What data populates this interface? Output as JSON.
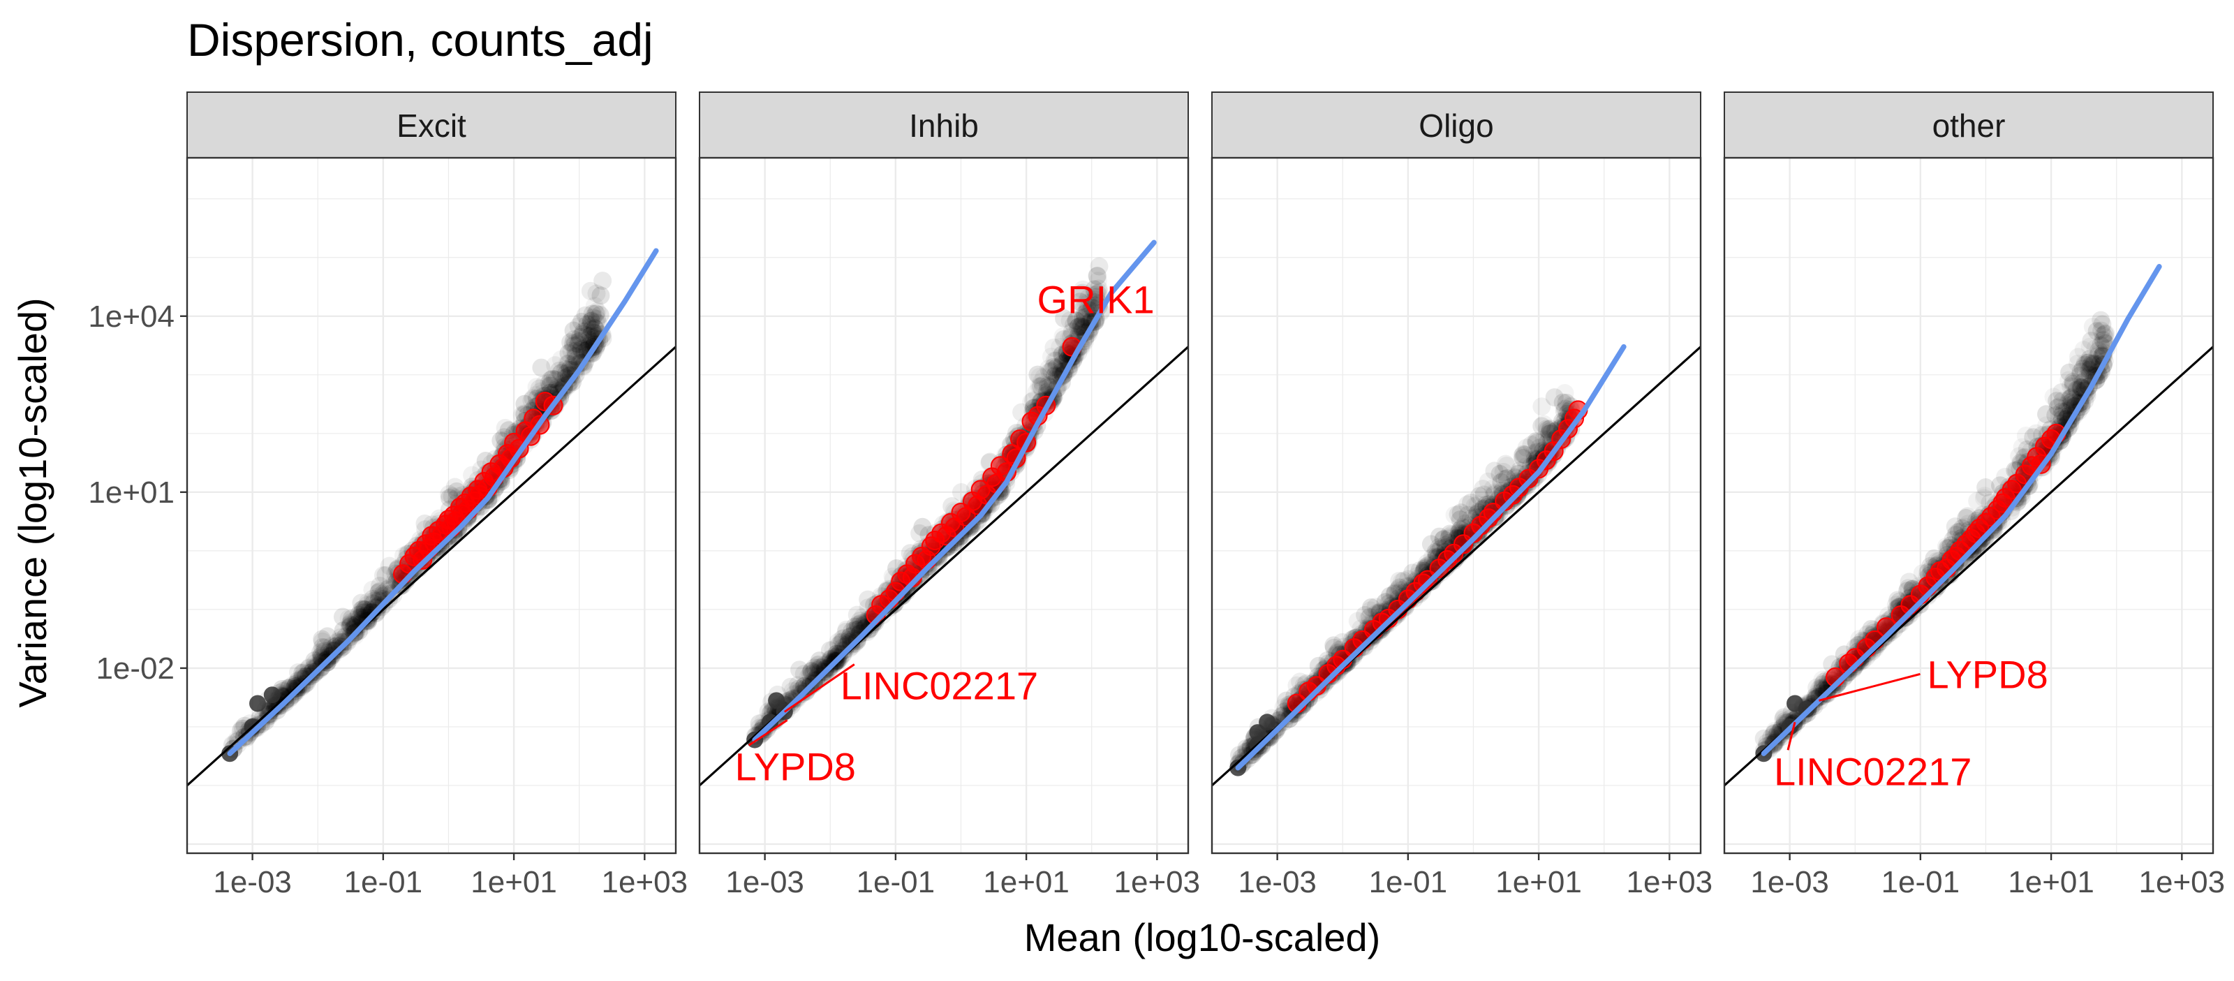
{
  "chart_data": {
    "type": "scatter",
    "title": "Dispersion,  counts_adj",
    "xlabel": "Mean (log10-scaled)",
    "ylabel": "Variance (log10-scaled)",
    "x_scale": "log10",
    "y_scale": "log10",
    "xlim": [
      0.0001,
      3000
    ],
    "ylim": [
      7e-06,
      5000000
    ],
    "x_ticks": [
      0.001,
      0.1,
      10,
      1000
    ],
    "x_tick_labels": [
      "1e-03",
      "1e-01",
      "1e+01",
      "1e+03"
    ],
    "y_ticks": [
      0.01,
      10,
      10000
    ],
    "y_tick_labels": [
      "1e-02",
      "1e+01",
      "1e+04"
    ],
    "grid": true,
    "colors": {
      "background_points": "#000000",
      "highlight_points": "#ff0000",
      "trend_line": "#6495ed",
      "identity_line": "#000000",
      "label_text": "#ff0000",
      "strip_fill": "#d9d9d9"
    },
    "panels": [
      {
        "name": "Excit",
        "trend": [
          [
            0.00045,
            0.00035
          ],
          [
            0.003,
            0.0025
          ],
          [
            0.03,
            0.03
          ],
          [
            0.3,
            0.45
          ],
          [
            1.5,
            2.5
          ],
          [
            4,
            8
          ],
          [
            10,
            35
          ],
          [
            30,
            200
          ],
          [
            100,
            1200
          ],
          [
            500,
            18000
          ],
          [
            1500,
            130000
          ]
        ],
        "highlighted": [
          [
            0.2,
            0.4
          ],
          [
            0.25,
            0.6
          ],
          [
            0.3,
            0.8
          ],
          [
            0.35,
            1.0
          ],
          [
            0.4,
            0.7
          ],
          [
            0.45,
            1.3
          ],
          [
            0.5,
            1.1
          ],
          [
            0.55,
            1.8
          ],
          [
            0.6,
            1.4
          ],
          [
            0.7,
            2.2
          ],
          [
            0.8,
            1.9
          ],
          [
            0.9,
            2.8
          ],
          [
            1.0,
            3.4
          ],
          [
            1.1,
            2.5
          ],
          [
            1.2,
            4.0
          ],
          [
            1.3,
            3.2
          ],
          [
            1.5,
            5.5
          ],
          [
            1.6,
            4.2
          ],
          [
            1.8,
            6.5
          ],
          [
            2.0,
            5.0
          ],
          [
            2.2,
            8.5
          ],
          [
            2.5,
            7.0
          ],
          [
            2.8,
            11
          ],
          [
            3.0,
            9.0
          ],
          [
            3.5,
            15
          ],
          [
            4.0,
            12
          ],
          [
            4.5,
            22
          ],
          [
            5.0,
            18
          ],
          [
            6.0,
            30
          ],
          [
            7.0,
            26
          ],
          [
            8.0,
            45
          ],
          [
            9.0,
            38
          ],
          [
            10,
            70
          ],
          [
            12,
            55
          ],
          [
            15,
            110
          ],
          [
            18,
            90
          ],
          [
            20,
            180
          ],
          [
            25,
            140
          ],
          [
            30,
            350
          ],
          [
            40,
            300
          ]
        ],
        "highlighted_labels": [],
        "dark_points": [
          [
            0.00045,
            0.00035
          ],
          [
            0.001,
            0.001
          ],
          [
            0.0012,
            0.0025
          ],
          [
            0.002,
            0.0035
          ]
        ]
      },
      {
        "name": "Inhib",
        "trend": [
          [
            0.0007,
            0.0006
          ],
          [
            0.003,
            0.0028
          ],
          [
            0.03,
            0.035
          ],
          [
            0.3,
            0.5
          ],
          [
            2,
            4
          ],
          [
            5,
            15
          ],
          [
            15,
            150
          ],
          [
            60,
            2500
          ],
          [
            200,
            25000
          ],
          [
            900,
            180000
          ]
        ],
        "highlighted": [
          [
            0.05,
            0.08
          ],
          [
            0.06,
            0.12
          ],
          [
            0.08,
            0.15
          ],
          [
            0.1,
            0.2
          ],
          [
            0.12,
            0.3
          ],
          [
            0.15,
            0.4
          ],
          [
            0.18,
            0.35
          ],
          [
            0.2,
            0.6
          ],
          [
            0.25,
            0.8
          ],
          [
            0.3,
            0.7
          ],
          [
            0.35,
            1.2
          ],
          [
            0.4,
            1.5
          ],
          [
            0.5,
            2.0
          ],
          [
            0.6,
            1.8
          ],
          [
            0.7,
            3.0
          ],
          [
            0.8,
            2.5
          ],
          [
            1.0,
            4.5
          ],
          [
            1.2,
            3.8
          ],
          [
            1.5,
            7.0
          ],
          [
            1.8,
            6.0
          ],
          [
            2.0,
            11
          ],
          [
            2.5,
            9.0
          ],
          [
            3.0,
            18
          ],
          [
            3.5,
            14
          ],
          [
            4.0,
            28
          ],
          [
            5.0,
            22
          ],
          [
            6.0,
            45
          ],
          [
            7.0,
            38
          ],
          [
            8.0,
            80
          ],
          [
            10,
            70
          ],
          [
            12,
            160
          ],
          [
            15,
            200
          ],
          [
            20,
            300
          ],
          [
            50,
            3000
          ]
        ],
        "highlighted_labels": [
          {
            "text": "GRIK1",
            "x": 50,
            "y": 3000
          },
          {
            "text": "LINC02217",
            "x": 0.002,
            "y": 0.0018
          },
          {
            "text": "LYPD8",
            "x": 0.0022,
            "y": 0.0013
          }
        ],
        "dark_points": [
          [
            0.0007,
            0.0006
          ],
          [
            0.0012,
            0.0012
          ],
          [
            0.0015,
            0.0028
          ],
          [
            0.002,
            0.0018
          ]
        ]
      },
      {
        "name": "Oligo",
        "trend": [
          [
            0.00025,
            0.0002
          ],
          [
            0.001,
            0.0009
          ],
          [
            0.01,
            0.011
          ],
          [
            0.1,
            0.13
          ],
          [
            1,
            1.6
          ],
          [
            10,
            22
          ],
          [
            50,
            250
          ],
          [
            200,
            3000
          ]
        ],
        "highlighted": [
          [
            0.002,
            0.0025
          ],
          [
            0.003,
            0.004
          ],
          [
            0.004,
            0.005
          ],
          [
            0.006,
            0.008
          ],
          [
            0.008,
            0.011
          ],
          [
            0.01,
            0.014
          ],
          [
            0.015,
            0.022
          ],
          [
            0.02,
            0.03
          ],
          [
            0.03,
            0.045
          ],
          [
            0.04,
            0.06
          ],
          [
            0.05,
            0.07
          ],
          [
            0.07,
            0.1
          ],
          [
            0.1,
            0.15
          ],
          [
            0.13,
            0.2
          ],
          [
            0.17,
            0.28
          ],
          [
            0.2,
            0.32
          ],
          [
            0.3,
            0.5
          ],
          [
            0.4,
            0.7
          ],
          [
            0.5,
            0.9
          ],
          [
            0.7,
            1.3
          ],
          [
            1.0,
            2.0
          ],
          [
            1.3,
            2.7
          ],
          [
            1.7,
            3.6
          ],
          [
            2.0,
            4.5
          ],
          [
            3.0,
            7.0
          ],
          [
            4.0,
            9.0
          ],
          [
            5.0,
            12
          ],
          [
            7.0,
            17
          ],
          [
            10,
            25
          ],
          [
            13,
            35
          ],
          [
            17,
            50
          ],
          [
            22,
            80
          ],
          [
            28,
            120
          ],
          [
            35,
            180
          ],
          [
            40,
            250
          ]
        ],
        "highlighted_labels": [],
        "dark_points": [
          [
            0.00025,
            0.0002
          ],
          [
            0.0005,
            0.0005
          ],
          [
            0.0007,
            0.0012
          ],
          [
            0.0005,
            0.0008
          ]
        ]
      },
      {
        "name": "other",
        "trend": [
          [
            0.0004,
            0.00035
          ],
          [
            0.003,
            0.003
          ],
          [
            0.03,
            0.035
          ],
          [
            0.3,
            0.45
          ],
          [
            2,
            4
          ],
          [
            10,
            45
          ],
          [
            40,
            600
          ],
          [
            150,
            9000
          ],
          [
            450,
            70000
          ]
        ],
        "highlighted": [
          [
            0.005,
            0.007
          ],
          [
            0.008,
            0.012
          ],
          [
            0.01,
            0.015
          ],
          [
            0.015,
            0.022
          ],
          [
            0.02,
            0.03
          ],
          [
            0.03,
            0.05
          ],
          [
            0.05,
            0.08
          ],
          [
            0.07,
            0.12
          ],
          [
            0.1,
            0.18
          ],
          [
            0.13,
            0.25
          ],
          [
            0.17,
            0.35
          ],
          [
            0.2,
            0.45
          ],
          [
            0.25,
            0.5
          ],
          [
            0.3,
            0.7
          ],
          [
            0.35,
            0.8
          ],
          [
            0.4,
            1.0
          ],
          [
            0.5,
            1.3
          ],
          [
            0.6,
            1.6
          ],
          [
            0.7,
            2.0
          ],
          [
            0.8,
            2.4
          ],
          [
            1.0,
            3.0
          ],
          [
            1.2,
            3.8
          ],
          [
            1.5,
            5.0
          ],
          [
            1.8,
            6.5
          ],
          [
            2.0,
            8.0
          ],
          [
            2.5,
            11
          ],
          [
            3.0,
            14
          ],
          [
            4.0,
            20
          ],
          [
            5.0,
            28
          ],
          [
            6.0,
            40
          ],
          [
            7.0,
            30
          ],
          [
            8.0,
            60
          ],
          [
            10,
            80
          ],
          [
            12,
            100
          ]
        ],
        "highlighted_labels": [
          {
            "text": "LYPD8",
            "x": 0.0028,
            "y": 0.0028
          },
          {
            "text": "LINC02217",
            "x": 0.0012,
            "y": 0.0012
          }
        ],
        "dark_points": [
          [
            0.0004,
            0.00035
          ],
          [
            0.001,
            0.001
          ],
          [
            0.0012,
            0.0025
          ],
          [
            0.0018,
            0.002
          ]
        ]
      }
    ]
  }
}
